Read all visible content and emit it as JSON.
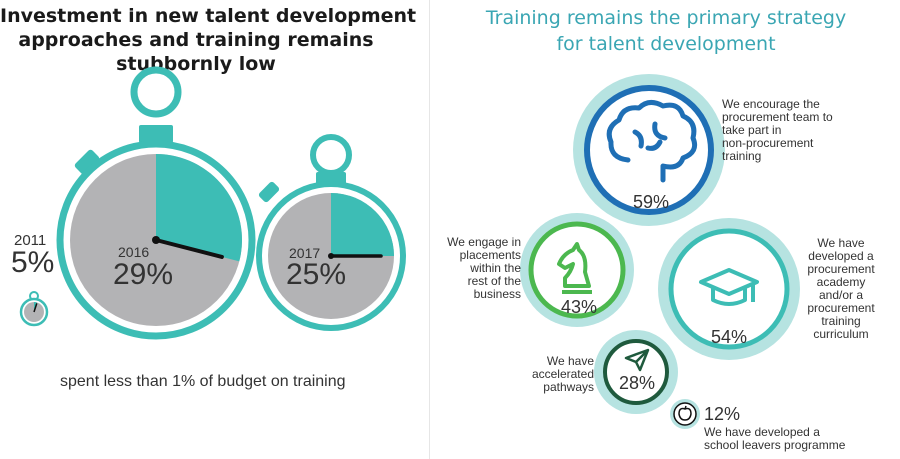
{
  "left": {
    "title_lines": [
      "Investment in new talent development",
      "approaches and training remains",
      "stubbornly low"
    ],
    "timers": [
      {
        "year": "2011",
        "value": "5%",
        "fraction": 0.05
      },
      {
        "year": "2016",
        "value": "29%",
        "fraction": 0.29
      },
      {
        "year": "2017",
        "value": "25%",
        "fraction": 0.25
      }
    ],
    "caption": "spent less than 1% of budget on training"
  },
  "right": {
    "title_lines": [
      "Training remains the primary strategy",
      "for talent development"
    ],
    "items": [
      {
        "icon": "brain-icon",
        "value": "59%",
        "lines": [
          "We encourage the",
          "procurement team to",
          "take part in",
          "non-procurement",
          "training"
        ]
      },
      {
        "icon": "chess-knight-icon",
        "value": "43%",
        "lines": [
          "We engage in",
          "placements",
          "within the",
          "rest of the",
          "business"
        ]
      },
      {
        "icon": "graduation-cap-icon",
        "value": "54%",
        "lines": [
          "We have",
          "developed a",
          "procurement",
          "academy",
          "and/or a",
          "procurement",
          "training",
          "curriculum"
        ]
      },
      {
        "icon": "paper-plane-icon",
        "value": "28%",
        "lines": [
          "We have",
          "accelerated",
          "pathways"
        ]
      },
      {
        "icon": "apple-icon",
        "value": "12%",
        "lines": [
          "We have developed a",
          "school leavers programme"
        ]
      }
    ]
  },
  "colors": {
    "teal": "#3dbdb5",
    "light_teal": "#9ed9d6",
    "blue": "#1f6fb5",
    "green": "#4cb84f",
    "dark_green": "#1f5a3d",
    "gray": "#b3b3b5",
    "black": "#111111"
  }
}
